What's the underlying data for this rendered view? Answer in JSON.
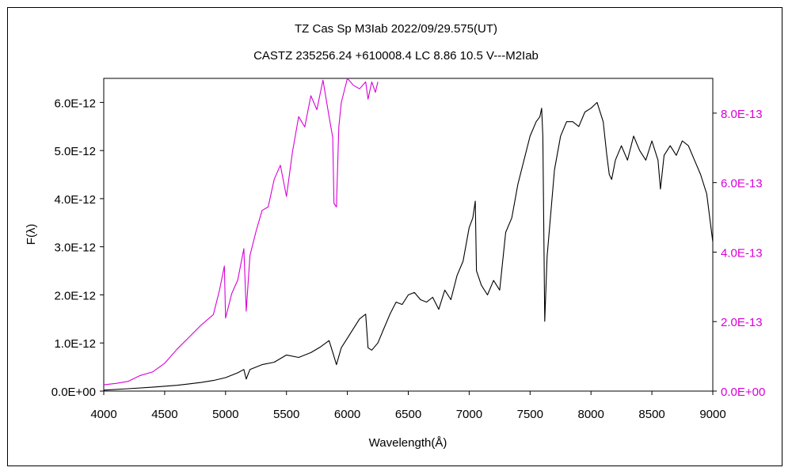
{
  "title_line1": "TZ Cas    Sp M3Iab    2022/09/29.575(UT)",
  "title_line2": "CASTZ 235256.24 +610008.4 LC 8.86 10.5 V---M2Iab",
  "colors": {
    "primary": "#000000",
    "secondary": "#d800d8"
  },
  "chart_data": {
    "type": "line",
    "xlabel": "Wavelength(Å)",
    "ylabel": "F(λ)",
    "xlim": [
      4000,
      9000
    ],
    "ylim_left": [
      0,
      6.5e-12
    ],
    "ylim_right": [
      0,
      9e-13
    ],
    "grid": false,
    "x_ticks": [
      4000,
      4500,
      5000,
      5500,
      6000,
      6500,
      7000,
      7500,
      8000,
      8500,
      9000
    ],
    "x_tick_labels": [
      "4000",
      "4500",
      "5000",
      "5500",
      "6000",
      "6500",
      "7000",
      "7500",
      "8000",
      "8500",
      "9000"
    ],
    "y_left_ticks": [
      0,
      1e-12,
      2e-12,
      3e-12,
      4e-12,
      5e-12,
      6e-12
    ],
    "y_left_tick_labels": [
      "0.0E+00",
      "1.0E-12",
      "2.0E-12",
      "3.0E-12",
      "4.0E-12",
      "5.0E-12",
      "6.0E-12"
    ],
    "y_right_ticks": [
      0,
      2e-13,
      4e-13,
      6e-13,
      8e-13
    ],
    "y_right_tick_labels": [
      "0.0E+00",
      "2.0E-13",
      "4.0E-13",
      "6.0E-13",
      "8.0E-13"
    ],
    "series": [
      {
        "axis": "left",
        "color": "#000000",
        "x": [
          4000,
          4200,
          4400,
          4600,
          4700,
          4800,
          4900,
          5000,
          5100,
          5150,
          5170,
          5200,
          5300,
          5400,
          5500,
          5600,
          5700,
          5780,
          5850,
          5890,
          5910,
          5950,
          6000,
          6100,
          6150,
          6170,
          6200,
          6250,
          6300,
          6350,
          6400,
          6450,
          6500,
          6550,
          6600,
          6650,
          6700,
          6750,
          6800,
          6850,
          6900,
          6950,
          7000,
          7030,
          7050,
          7060,
          7080,
          7100,
          7150,
          7200,
          7250,
          7300,
          7350,
          7400,
          7450,
          7500,
          7550,
          7580,
          7595,
          7605,
          7620,
          7640,
          7660,
          7700,
          7750,
          7800,
          7850,
          7900,
          7950,
          8000,
          8050,
          8100,
          8130,
          8150,
          8170,
          8200,
          8250,
          8300,
          8350,
          8400,
          8450,
          8500,
          8550,
          8570,
          8600,
          8650,
          8700,
          8750,
          8800,
          8850,
          8900,
          8950,
          9000
        ],
        "y": [
          2e-14,
          5e-14,
          8e-14,
          1.2e-13,
          1.5e-13,
          1.8e-13,
          2.2e-13,
          2.8e-13,
          3.8e-13,
          4.5e-13,
          2.5e-13,
          4.5e-13,
          5.5e-13,
          6e-13,
          7.5e-13,
          7e-13,
          8e-13,
          9.2e-13,
          1.05e-12,
          7.2e-13,
          5.5e-13,
          9e-13,
          1.1e-12,
          1.5e-12,
          1.6e-12,
          9e-13,
          8.5e-13,
          1e-12,
          1.3e-12,
          1.6e-12,
          1.85e-12,
          1.8e-12,
          2e-12,
          2.05e-12,
          1.9e-12,
          1.85e-12,
          1.95e-12,
          1.7e-12,
          2.1e-12,
          1.9e-12,
          2.4e-12,
          2.7e-12,
          3.4e-12,
          3.6e-12,
          3.95e-12,
          2.5e-12,
          2.35e-12,
          2.2e-12,
          2e-12,
          2.3e-12,
          2.1e-12,
          3.3e-12,
          3.6e-12,
          4.3e-12,
          4.8e-12,
          5.3e-12,
          5.6e-12,
          5.7e-12,
          5.88e-12,
          5.3e-12,
          1.45e-12,
          2.8e-12,
          3.4e-12,
          4.6e-12,
          5.3e-12,
          5.6e-12,
          5.6e-12,
          5.5e-12,
          5.8e-12,
          5.88e-12,
          6e-12,
          5.6e-12,
          4.9e-12,
          4.5e-12,
          4.4e-12,
          4.8e-12,
          5.1e-12,
          4.8e-12,
          5.3e-12,
          5e-12,
          4.8e-12,
          5.2e-12,
          4.8e-12,
          4.2e-12,
          4.9e-12,
          5.1e-12,
          4.9e-12,
          5.2e-12,
          5.1e-12,
          4.8e-12,
          4.5e-12,
          4.1e-12,
          3.1e-12
        ]
      },
      {
        "axis": "right",
        "color": "#d800d8",
        "x": [
          4000,
          4100,
          4200,
          4300,
          4400,
          4500,
          4600,
          4700,
          4800,
          4900,
          4950,
          4990,
          5000,
          5050,
          5100,
          5150,
          5170,
          5200,
          5250,
          5300,
          5350,
          5400,
          5450,
          5500,
          5550,
          5600,
          5650,
          5700,
          5750,
          5800,
          5850,
          5880,
          5890,
          5910,
          5930,
          5950,
          6000,
          6050,
          6100,
          6150,
          6170,
          6200,
          6230,
          6250
        ],
        "y": [
          1.8e-14,
          2.2e-14,
          2.8e-14,
          4.5e-14,
          5.5e-14,
          8e-14,
          1.2e-13,
          1.55e-13,
          1.9e-13,
          2.2e-13,
          2.9e-13,
          3.6e-13,
          2.1e-13,
          2.8e-13,
          3.2e-13,
          4.1e-13,
          2.3e-13,
          3.9e-13,
          4.6e-13,
          5.2e-13,
          5.3e-13,
          6.1e-13,
          6.5e-13,
          5.6e-13,
          6.9e-13,
          7.9e-13,
          7.6e-13,
          8.5e-13,
          8.1e-13,
          8.95e-13,
          7.9e-13,
          7.3e-13,
          5.4e-13,
          5.3e-13,
          7.6e-13,
          8.3e-13,
          9e-13,
          8.8e-13,
          8.7e-13,
          8.9e-13,
          8.4e-13,
          8.9e-13,
          8.6e-13,
          8.9e-13
        ]
      }
    ]
  }
}
